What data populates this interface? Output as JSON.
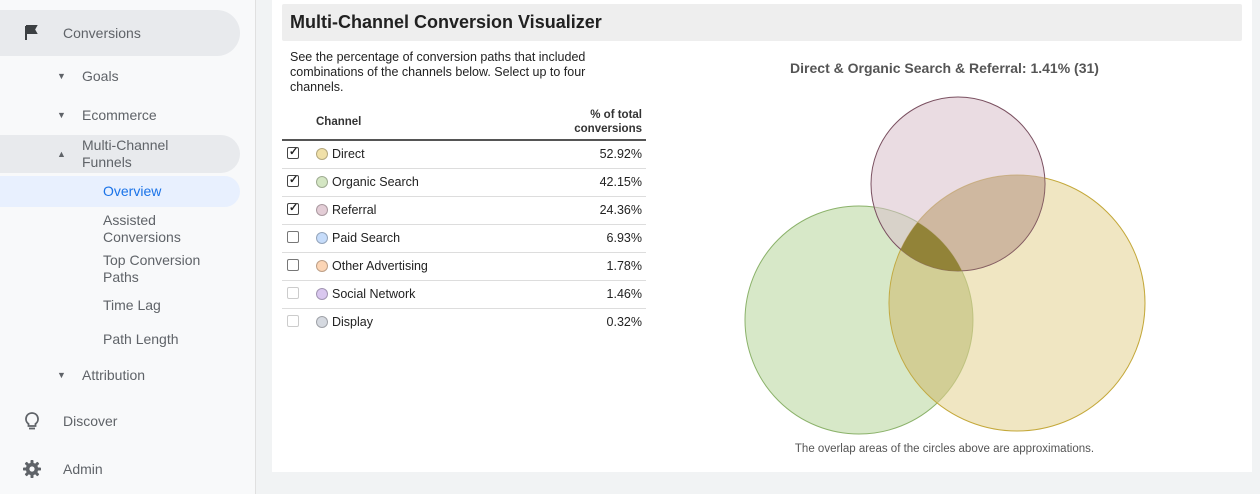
{
  "sidebar": {
    "conversions": {
      "label": "Conversions",
      "icon": "flag-icon"
    },
    "goals": {
      "label": "Goals"
    },
    "ecommerce": {
      "label": "Ecommerce"
    },
    "multi_channel": {
      "label": "Multi-Channel Funnels"
    },
    "overview": {
      "label": "Overview"
    },
    "assisted": {
      "label": "Assisted Conversions"
    },
    "top_paths": {
      "label": "Top Conversion Paths"
    },
    "time_lag": {
      "label": "Time Lag"
    },
    "path_length": {
      "label": "Path Length"
    },
    "attribution": {
      "label": "Attribution"
    },
    "discover": {
      "label": "Discover",
      "icon": "lightbulb-icon"
    },
    "admin": {
      "label": "Admin",
      "icon": "gear-icon"
    }
  },
  "main": {
    "title": "Multi-Channel Conversion Visualizer",
    "description": "See the percentage of conversion paths that included combinations of the channels below. Select up to four channels.",
    "table": {
      "col_channel": "Channel",
      "col_pct": "% of total conversions",
      "rows": [
        {
          "channel": "Direct",
          "pct": "52.92%",
          "checked": true,
          "color": "#f0e0a8"
        },
        {
          "channel": "Organic Search",
          "pct": "42.15%",
          "checked": true,
          "color": "#d4e6c3"
        },
        {
          "channel": "Referral",
          "pct": "24.36%",
          "checked": true,
          "color": "#e3cdd6"
        },
        {
          "channel": "Paid Search",
          "pct": "6.93%",
          "checked": false,
          "color": "#c6dcfa"
        },
        {
          "channel": "Other Advertising",
          "pct": "1.78%",
          "checked": false,
          "color": "#fcd5b5"
        },
        {
          "channel": "Social Network",
          "pct": "1.46%",
          "checked": false,
          "color": "#d9c7ef"
        },
        {
          "channel": "Display",
          "pct": "0.32%",
          "checked": false,
          "color": "#d5d9e0"
        }
      ]
    },
    "venn": {
      "title": "Direct & Organic Search & Referral: 1.41% (31)",
      "note": "The overlap areas of the circles above are approximations.",
      "colors": {
        "direct": "#e6d59a",
        "organic": "#bcd9a3",
        "referral": "#d8bfca",
        "intersection": "#8a7a2a"
      }
    }
  }
}
